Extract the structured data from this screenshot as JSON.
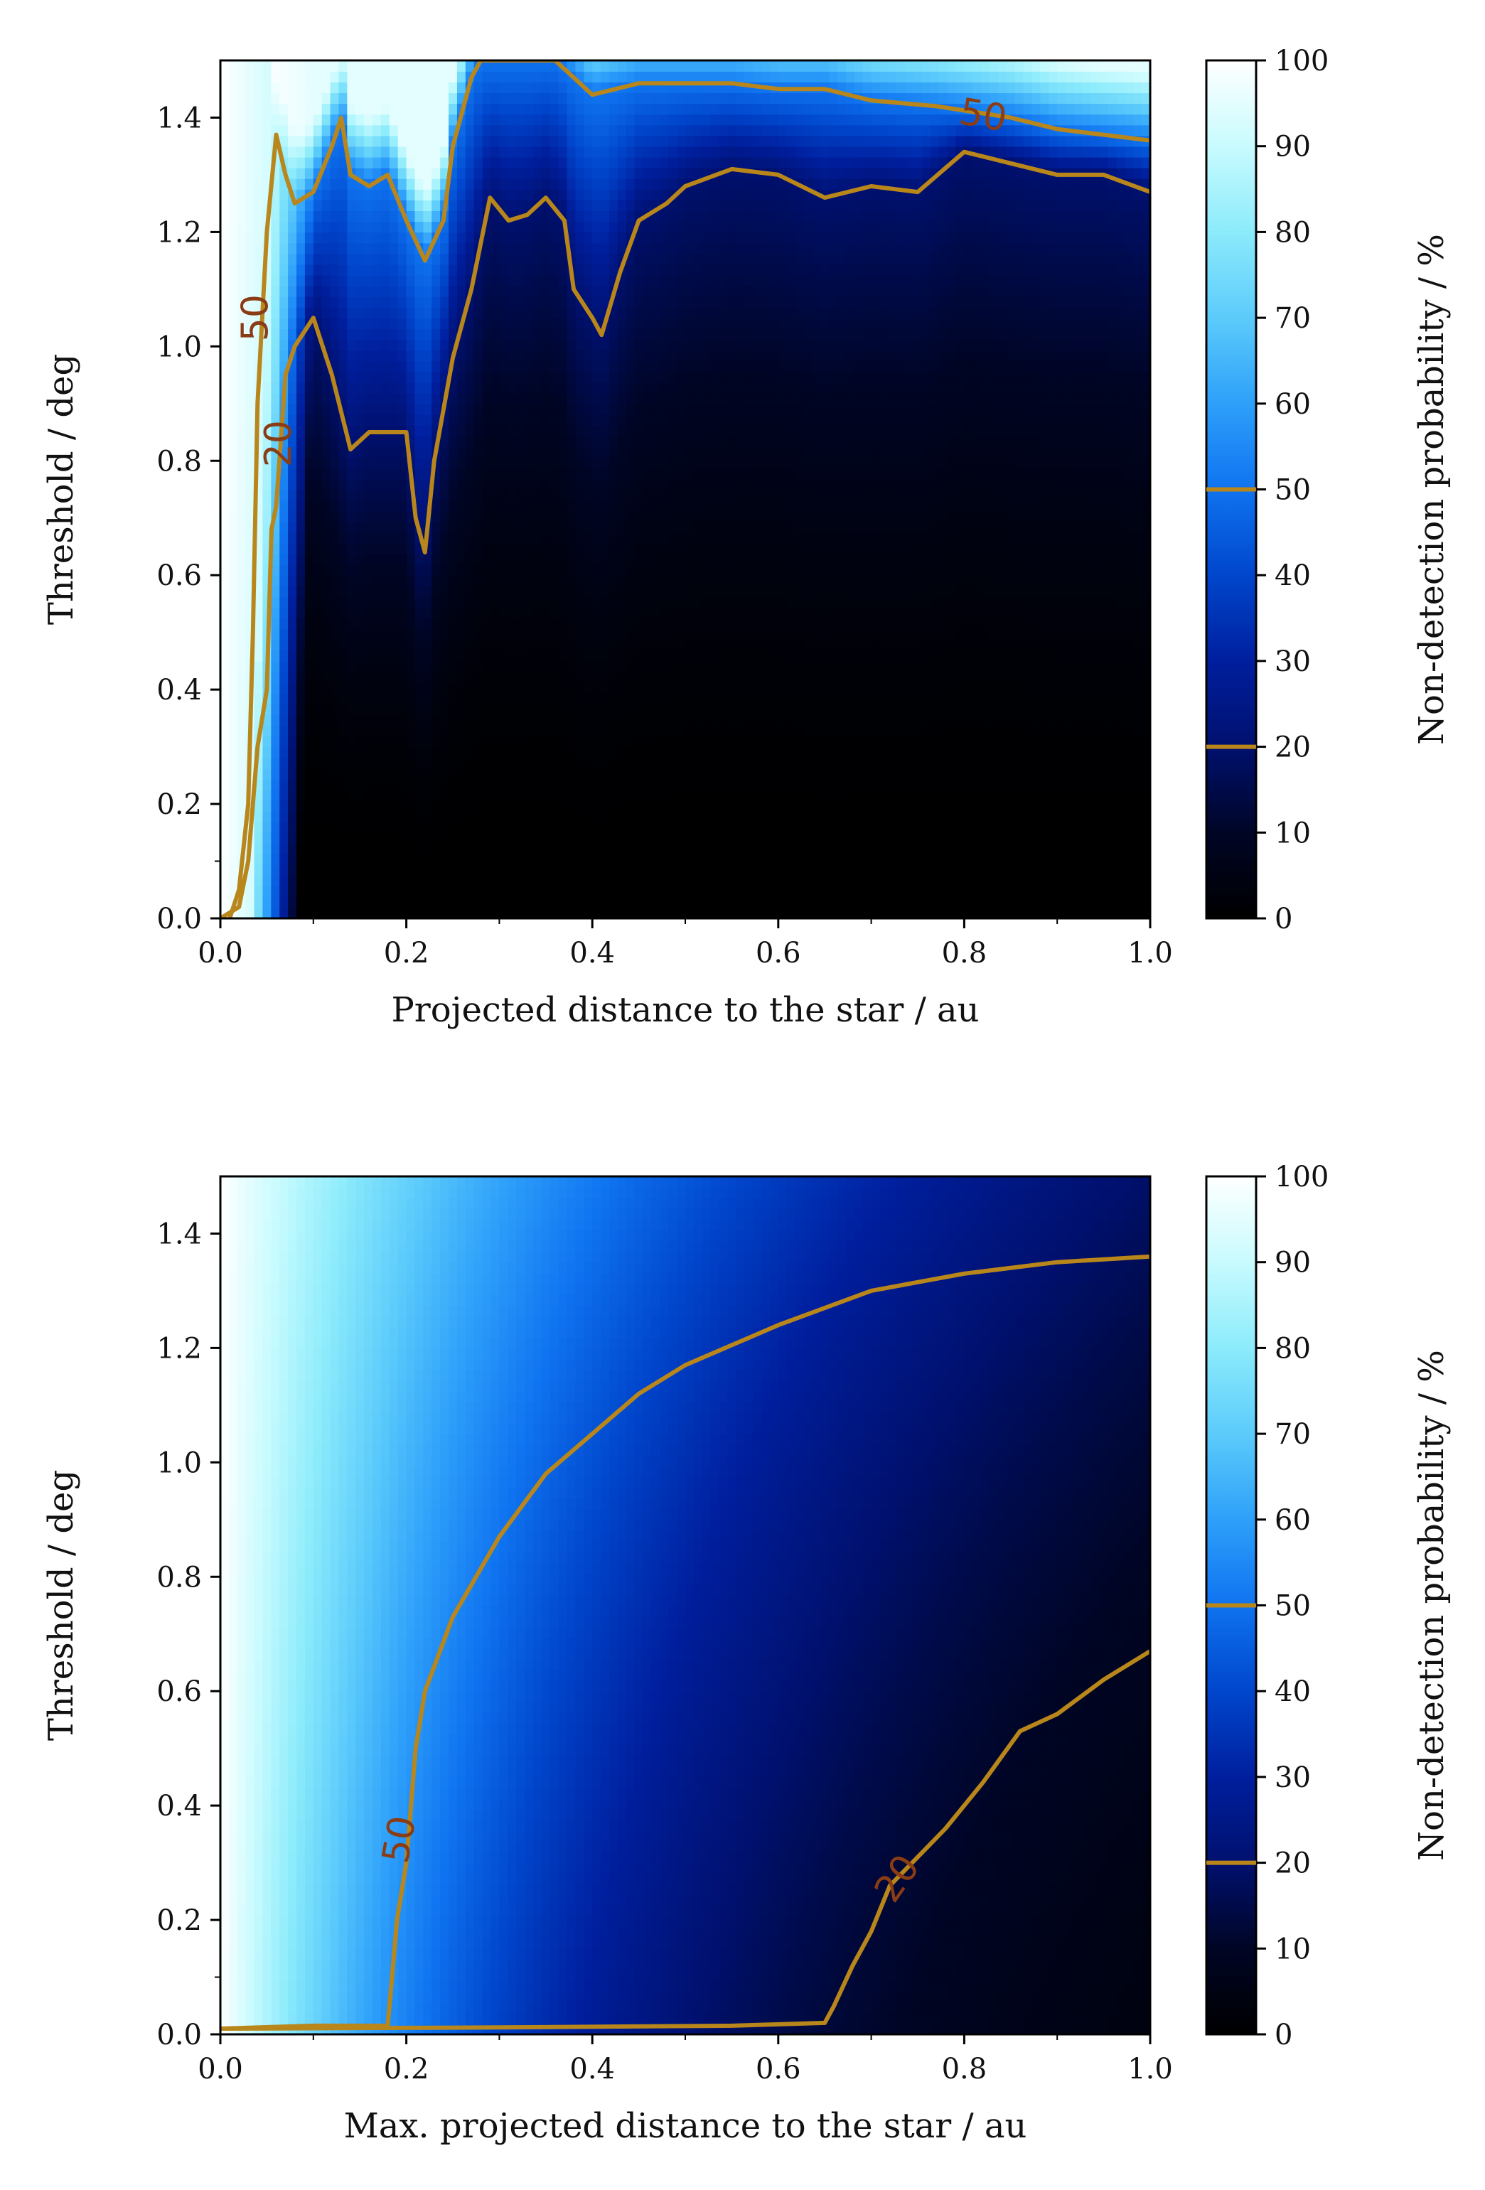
{
  "colors": {
    "contour": "#b8861b",
    "contour_label": "#8a3c15",
    "colormap_stops": [
      {
        "value": 0,
        "color": "#000000"
      },
      {
        "value": 10,
        "color": "#000525"
      },
      {
        "value": 20,
        "color": "#00106e"
      },
      {
        "value": 30,
        "color": "#001f9e"
      },
      {
        "value": 40,
        "color": "#0046cc"
      },
      {
        "value": 50,
        "color": "#0f73f0"
      },
      {
        "value": 60,
        "color": "#2ea0fa"
      },
      {
        "value": 70,
        "color": "#5ccbfb"
      },
      {
        "value": 80,
        "color": "#8cebfb"
      },
      {
        "value": 90,
        "color": "#c8fbfe"
      },
      {
        "value": 100,
        "color": "#ffffff"
      }
    ]
  },
  "chart_data": [
    {
      "type": "heatmap",
      "subtype": "filled-contour",
      "xlabel": "Projected distance to the star / au",
      "ylabel": "Threshold / deg",
      "xlim": [
        0,
        1.0
      ],
      "ylim": [
        0,
        1.5
      ],
      "xticks": [
        "0.0",
        "0.2",
        "0.4",
        "0.6",
        "0.8",
        "1.0"
      ],
      "yticks": [
        "0.0",
        "0.2",
        "0.4",
        "0.6",
        "0.8",
        "1.0",
        "1.2",
        "1.4"
      ],
      "colorbar": {
        "label": "Non-detection probability / %",
        "ticks": [
          "0",
          "10",
          "20",
          "30",
          "40",
          "50",
          "60",
          "70",
          "80",
          "90",
          "100"
        ],
        "contour_levels": [
          20,
          50
        ]
      },
      "contours": [
        {
          "level": 50,
          "label": "50",
          "points": [
            [
              0.01,
              0.0
            ],
            [
              0.02,
              0.05
            ],
            [
              0.03,
              0.2
            ],
            [
              0.035,
              0.5
            ],
            [
              0.04,
              0.9
            ],
            [
              0.05,
              1.2
            ],
            [
              0.06,
              1.37
            ],
            [
              0.07,
              1.3
            ],
            [
              0.08,
              1.25
            ],
            [
              0.1,
              1.27
            ],
            [
              0.12,
              1.35
            ],
            [
              0.13,
              1.4
            ],
            [
              0.14,
              1.3
            ],
            [
              0.16,
              1.28
            ],
            [
              0.18,
              1.3
            ],
            [
              0.2,
              1.22
            ],
            [
              0.22,
              1.15
            ],
            [
              0.24,
              1.22
            ],
            [
              0.25,
              1.35
            ],
            [
              0.27,
              1.47
            ],
            [
              0.28,
              1.5
            ],
            [
              0.32,
              1.5
            ],
            [
              0.36,
              1.5
            ],
            [
              0.38,
              1.47
            ],
            [
              0.4,
              1.44
            ],
            [
              0.45,
              1.46
            ],
            [
              0.5,
              1.46
            ],
            [
              0.55,
              1.46
            ],
            [
              0.6,
              1.45
            ],
            [
              0.65,
              1.45
            ],
            [
              0.7,
              1.43
            ],
            [
              0.77,
              1.42
            ],
            [
              0.85,
              1.4
            ],
            [
              0.9,
              1.38
            ],
            [
              1.0,
              1.36
            ]
          ]
        },
        {
          "level": 20,
          "label": "20",
          "points": [
            [
              0.0,
              0.0
            ],
            [
              0.02,
              0.02
            ],
            [
              0.03,
              0.1
            ],
            [
              0.04,
              0.3
            ],
            [
              0.05,
              0.4
            ],
            [
              0.055,
              0.68
            ],
            [
              0.06,
              0.72
            ],
            [
              0.07,
              0.95
            ],
            [
              0.08,
              1.0
            ],
            [
              0.1,
              1.05
            ],
            [
              0.12,
              0.95
            ],
            [
              0.14,
              0.82
            ],
            [
              0.16,
              0.85
            ],
            [
              0.2,
              0.85
            ],
            [
              0.21,
              0.7
            ],
            [
              0.22,
              0.64
            ],
            [
              0.23,
              0.8
            ],
            [
              0.25,
              0.98
            ],
            [
              0.27,
              1.1
            ],
            [
              0.29,
              1.26
            ],
            [
              0.31,
              1.22
            ],
            [
              0.33,
              1.23
            ],
            [
              0.35,
              1.26
            ],
            [
              0.37,
              1.22
            ],
            [
              0.38,
              1.1
            ],
            [
              0.4,
              1.05
            ],
            [
              0.41,
              1.02
            ],
            [
              0.43,
              1.13
            ],
            [
              0.45,
              1.22
            ],
            [
              0.48,
              1.25
            ],
            [
              0.5,
              1.28
            ],
            [
              0.55,
              1.31
            ],
            [
              0.6,
              1.3
            ],
            [
              0.65,
              1.26
            ],
            [
              0.7,
              1.28
            ],
            [
              0.75,
              1.27
            ],
            [
              0.8,
              1.34
            ],
            [
              0.85,
              1.32
            ],
            [
              0.9,
              1.3
            ],
            [
              0.95,
              1.3
            ],
            [
              1.0,
              1.27
            ]
          ]
        }
      ],
      "contour_labels": [
        {
          "text": "50",
          "x": 0.82,
          "y": 1.4,
          "angle": 10
        },
        {
          "text": "50",
          "x": 0.04,
          "y": 1.05,
          "angle": -90
        },
        {
          "text": "20",
          "x": 0.065,
          "y": 0.83,
          "angle": -90
        }
      ],
      "field_note": "Non-detection probability is near 100% at the smallest distances, with a blue band near 1.2–1.5 deg and values below 20% across most of the lower region."
    },
    {
      "type": "heatmap",
      "subtype": "filled-contour",
      "xlabel": "Max. projected distance to the star / au",
      "ylabel": "Threshold / deg",
      "xlim": [
        0,
        1.0
      ],
      "ylim": [
        0,
        1.5
      ],
      "xticks": [
        "0.0",
        "0.2",
        "0.4",
        "0.6",
        "0.8",
        "1.0"
      ],
      "yticks": [
        "0.0",
        "0.2",
        "0.4",
        "0.6",
        "0.8",
        "1.0",
        "1.2",
        "1.4"
      ],
      "colorbar": {
        "label": "Non-detection probability / %",
        "ticks": [
          "0",
          "10",
          "20",
          "30",
          "40",
          "50",
          "60",
          "70",
          "80",
          "90",
          "100"
        ],
        "contour_levels": [
          20,
          50
        ]
      },
      "contours": [
        {
          "level": 50,
          "label": "50",
          "points": [
            [
              0.0,
              0.01
            ],
            [
              0.1,
              0.015
            ],
            [
              0.18,
              0.015
            ],
            [
              0.19,
              0.2
            ],
            [
              0.2,
              0.3
            ],
            [
              0.21,
              0.5
            ],
            [
              0.22,
              0.6
            ],
            [
              0.25,
              0.73
            ],
            [
              0.3,
              0.87
            ],
            [
              0.35,
              0.98
            ],
            [
              0.4,
              1.05
            ],
            [
              0.45,
              1.12
            ],
            [
              0.5,
              1.17
            ],
            [
              0.6,
              1.24
            ],
            [
              0.7,
              1.3
            ],
            [
              0.8,
              1.33
            ],
            [
              0.9,
              1.35
            ],
            [
              1.0,
              1.36
            ]
          ]
        },
        {
          "level": 20,
          "label": "20",
          "points": [
            [
              0.0,
              0.01
            ],
            [
              0.3,
              0.012
            ],
            [
              0.55,
              0.015
            ],
            [
              0.65,
              0.02
            ],
            [
              0.66,
              0.05
            ],
            [
              0.68,
              0.12
            ],
            [
              0.7,
              0.18
            ],
            [
              0.72,
              0.26
            ],
            [
              0.78,
              0.36
            ],
            [
              0.82,
              0.44
            ],
            [
              0.86,
              0.53
            ],
            [
              0.9,
              0.56
            ],
            [
              0.95,
              0.62
            ],
            [
              1.0,
              0.67
            ]
          ]
        }
      ],
      "contour_labels": [
        {
          "text": "50",
          "x": 0.195,
          "y": 0.34,
          "angle": -80
        },
        {
          "text": "20",
          "x": 0.73,
          "y": 0.27,
          "angle": -55
        }
      ],
      "field_note": "Smooth field: near 100% at x near 0, decreasing to the right and downward; below 20% in the lower-right corner."
    }
  ]
}
